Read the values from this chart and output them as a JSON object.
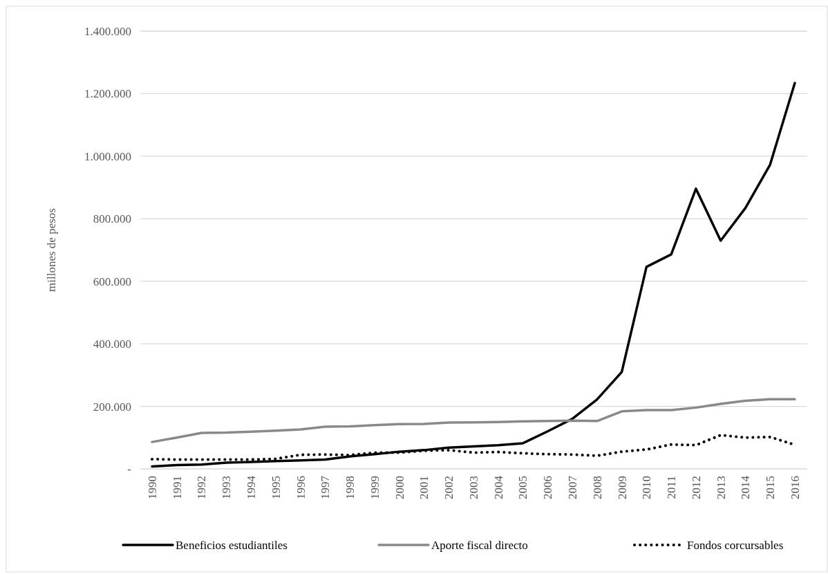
{
  "chart_data": {
    "type": "line",
    "ylabel": "millones  de pesos",
    "categories": [
      "1990",
      "1991",
      "1992",
      "1993",
      "1994",
      "1995",
      "1996",
      "1997",
      "1998",
      "1999",
      "2000",
      "2001",
      "2002",
      "2003",
      "2004",
      "2005",
      "2006",
      "2007",
      "2008",
      "2009",
      "2010",
      "2011",
      "2012",
      "2013",
      "2014",
      "2015",
      "2016"
    ],
    "series": [
      {
        "name": "Beneficios estudiantiles",
        "color": "#000000",
        "line_style": "solid",
        "values": [
          8000,
          12000,
          14000,
          20000,
          22000,
          25000,
          27000,
          30000,
          40000,
          47000,
          55000,
          60000,
          68000,
          72000,
          76000,
          82000,
          120000,
          160000,
          222000,
          310000,
          646000,
          686000,
          896000,
          730000,
          834000,
          973000,
          1234000
        ]
      },
      {
        "name": "Aporte fiscal directo",
        "color": "#898989",
        "line_style": "solid",
        "values": [
          86000,
          100000,
          115000,
          116000,
          119000,
          122000,
          126000,
          135000,
          136000,
          140000,
          143000,
          144000,
          148000,
          149000,
          150000,
          152000,
          153000,
          154000,
          153000,
          184000,
          188000,
          188000,
          196000,
          208000,
          218000,
          223000,
          223000
        ]
      },
      {
        "name": "Fondos corcursables",
        "color": "#000000",
        "line_style": "dotted",
        "values": [
          31000,
          30000,
          30000,
          30000,
          30000,
          32000,
          45000,
          46000,
          44000,
          52000,
          52000,
          58000,
          60000,
          52000,
          54000,
          50000,
          47000,
          46000,
          42000,
          55000,
          62000,
          78000,
          76000,
          108000,
          100000,
          102000,
          77000
        ]
      }
    ],
    "ylim": [
      0,
      1400000
    ],
    "yticks": [
      {
        "value": 0,
        "label": "-"
      },
      {
        "value": 200000,
        "label": "200.000"
      },
      {
        "value": 400000,
        "label": "400.000"
      },
      {
        "value": 600000,
        "label": "600.000"
      },
      {
        "value": 800000,
        "label": "800.000"
      },
      {
        "value": 1000000,
        "label": "1.000.000"
      },
      {
        "value": 1200000,
        "label": "1.200.000"
      },
      {
        "value": 1400000,
        "label": "1.400.000"
      }
    ],
    "grid": "y",
    "legend": "bottom",
    "marker": "none"
  }
}
